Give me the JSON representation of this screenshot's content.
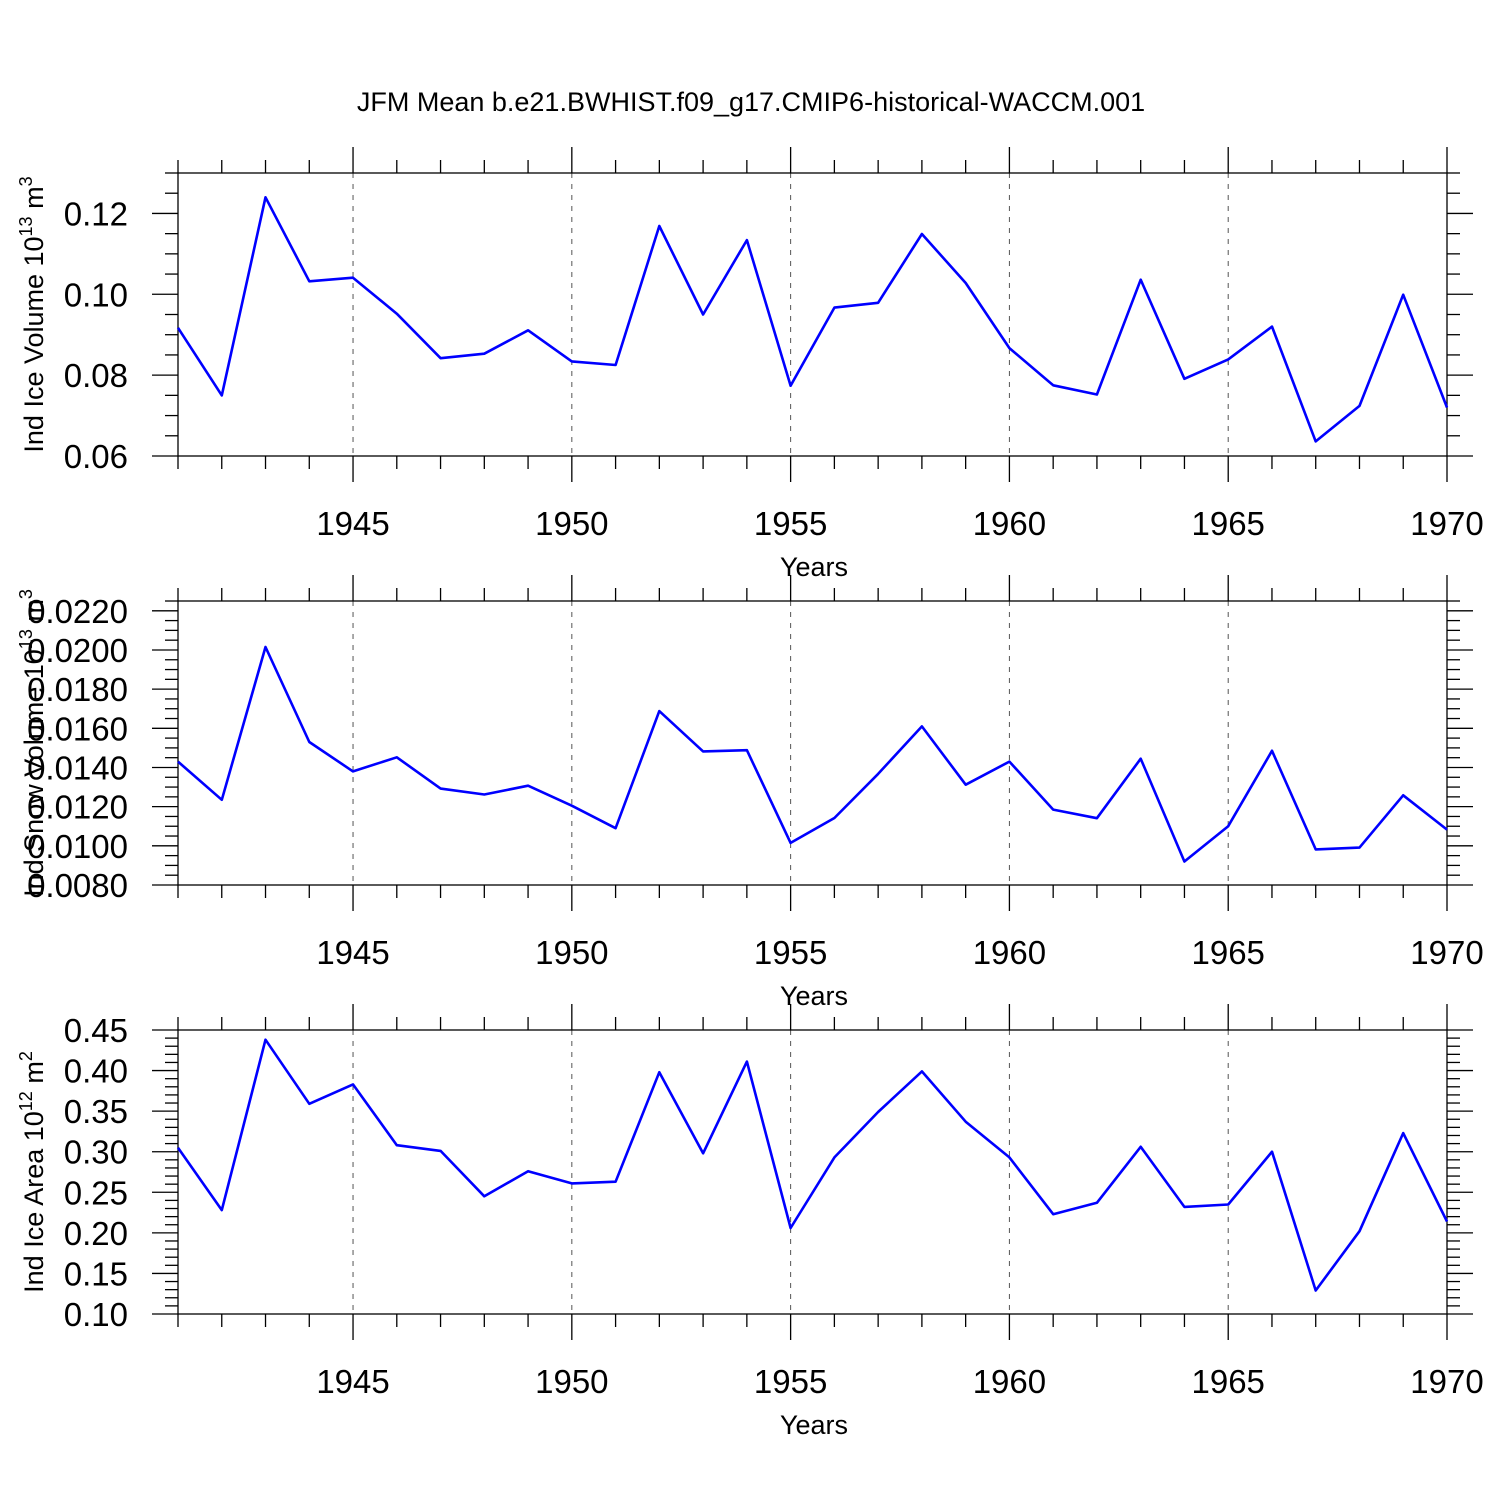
{
  "title": "JFM Mean b.e21.BWHIST.f09_g17.CMIP6-historical-WACCM.001",
  "chart_data": [
    {
      "type": "line",
      "xlabel": "Years",
      "ylabel_main": "Ind Ice Volume 10",
      "ylabel_exp": "13",
      "ylabel_unit": "m",
      "ylabel_unit_exp": "3",
      "xlim": [
        1941,
        1970
      ],
      "ylim": [
        0.06,
        0.13
      ],
      "yticks": [
        "0.06",
        "0.08",
        "0.10",
        "0.12"
      ],
      "ytick_values": [
        0.06,
        0.08,
        0.1,
        0.12
      ],
      "y_minor_step": 0.005,
      "xticks": [
        "1945",
        "1950",
        "1955",
        "1960",
        "1965",
        "1970"
      ],
      "xtick_values": [
        1945,
        1950,
        1955,
        1960,
        1965,
        1970
      ],
      "grid": "dashed vertical at major x ticks",
      "series_color": "#0000ff",
      "x": [
        1941,
        1942,
        1943,
        1944,
        1945,
        1946,
        1947,
        1948,
        1949,
        1950,
        1951,
        1952,
        1953,
        1954,
        1955,
        1956,
        1957,
        1958,
        1959,
        1960,
        1961,
        1962,
        1963,
        1964,
        1965,
        1966,
        1967,
        1968,
        1969,
        1970
      ],
      "values": [
        0.0917,
        0.075,
        0.124,
        0.1032,
        0.1041,
        0.0952,
        0.0842,
        0.0853,
        0.0911,
        0.0834,
        0.0825,
        0.1169,
        0.095,
        0.1134,
        0.0774,
        0.0967,
        0.0979,
        0.1149,
        0.1028,
        0.0867,
        0.0775,
        0.0752,
        0.1036,
        0.0791,
        0.0839,
        0.092,
        0.0636,
        0.0724,
        0.0999,
        0.072
      ]
    },
    {
      "type": "line",
      "xlabel": "Years",
      "ylabel_main": "Ind Snow Volume 10",
      "ylabel_exp": "13",
      "ylabel_unit": "m",
      "ylabel_unit_exp": "3",
      "xlim": [
        1941,
        1970
      ],
      "ylim": [
        0.008,
        0.0225
      ],
      "yticks": [
        "0.0080",
        "0.0100",
        "0.0120",
        "0.0140",
        "0.0160",
        "0.0180",
        "0.0200",
        "0.0220"
      ],
      "ytick_values": [
        0.008,
        0.01,
        0.012,
        0.014,
        0.016,
        0.018,
        0.02,
        0.022
      ],
      "y_minor_step": 0.0005,
      "xticks": [
        "1945",
        "1950",
        "1955",
        "1960",
        "1965",
        "1970"
      ],
      "xtick_values": [
        1945,
        1950,
        1955,
        1960,
        1965,
        1970
      ],
      "grid": "dashed vertical at major x ticks",
      "series_color": "#0000ff",
      "x": [
        1941,
        1942,
        1943,
        1944,
        1945,
        1946,
        1947,
        1948,
        1949,
        1950,
        1951,
        1952,
        1953,
        1954,
        1955,
        1956,
        1957,
        1958,
        1959,
        1960,
        1961,
        1962,
        1963,
        1964,
        1965,
        1966,
        1967,
        1968,
        1969,
        1970
      ],
      "values": [
        0.0143,
        0.01235,
        0.02015,
        0.0153,
        0.0138,
        0.01452,
        0.01292,
        0.01262,
        0.01307,
        0.01205,
        0.0109,
        0.01688,
        0.01482,
        0.01488,
        0.01015,
        0.01142,
        0.01367,
        0.0161,
        0.01312,
        0.0143,
        0.01185,
        0.01141,
        0.01445,
        0.0092,
        0.011,
        0.01485,
        0.00982,
        0.00991,
        0.01258,
        0.01083
      ]
    },
    {
      "type": "line",
      "xlabel": "Years",
      "ylabel_main": "Ind Ice Area 10",
      "ylabel_exp": "12",
      "ylabel_unit": "m",
      "ylabel_unit_exp": "2",
      "xlim": [
        1941,
        1970
      ],
      "ylim": [
        0.1,
        0.45
      ],
      "yticks": [
        "0.10",
        "0.15",
        "0.20",
        "0.25",
        "0.30",
        "0.35",
        "0.40",
        "0.45"
      ],
      "ytick_values": [
        0.1,
        0.15,
        0.2,
        0.25,
        0.3,
        0.35,
        0.4,
        0.45
      ],
      "y_minor_step": 0.01,
      "xticks": [
        "1945",
        "1950",
        "1955",
        "1960",
        "1965",
        "1970"
      ],
      "xtick_values": [
        1945,
        1950,
        1955,
        1960,
        1965,
        1970
      ],
      "grid": "dashed vertical at major x ticks",
      "series_color": "#0000ff",
      "x": [
        1941,
        1942,
        1943,
        1944,
        1945,
        1946,
        1947,
        1948,
        1949,
        1950,
        1951,
        1952,
        1953,
        1954,
        1955,
        1956,
        1957,
        1958,
        1959,
        1960,
        1961,
        1962,
        1963,
        1964,
        1965,
        1966,
        1967,
        1968,
        1969,
        1970
      ],
      "values": [
        0.305,
        0.228,
        0.438,
        0.359,
        0.383,
        0.308,
        0.301,
        0.245,
        0.276,
        0.261,
        0.263,
        0.398,
        0.298,
        0.411,
        0.206,
        0.293,
        0.349,
        0.399,
        0.337,
        0.293,
        0.223,
        0.237,
        0.306,
        0.232,
        0.235,
        0.3,
        0.129,
        0.202,
        0.323,
        0.214
      ]
    }
  ]
}
